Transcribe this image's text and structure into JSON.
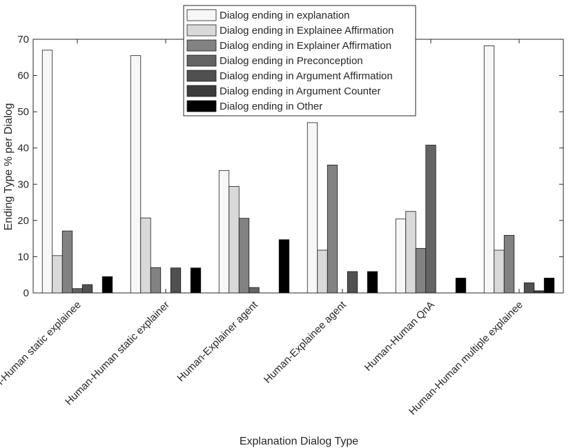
{
  "chart_data": {
    "type": "bar",
    "title": "",
    "xlabel": "Explanation Dialog Type",
    "ylabel": "Ending Type % per Dialog",
    "ylim": [
      0,
      70
    ],
    "yticks": [
      0,
      10,
      20,
      30,
      40,
      50,
      60,
      70
    ],
    "grid": false,
    "legend_position": "top-center",
    "categories": [
      "Human-Human static explainee",
      "Human-Human static explainer",
      "Human-Explainer agent",
      "Human-Explainee agent",
      "Human-Human QnA",
      "Human-Human multiple explainee"
    ],
    "series": [
      {
        "name": "Dialog ending in explanation",
        "color": "#f7f7f7",
        "values": [
          67.0,
          65.5,
          33.8,
          47.0,
          20.4,
          68.2
        ]
      },
      {
        "name": "Dialog ending in Explainee Affirmation",
        "color": "#d9d9d9",
        "values": [
          10.3,
          20.7,
          29.4,
          11.8,
          22.5,
          11.8
        ]
      },
      {
        "name": "Dialog ending in Explainer Affirmation",
        "color": "#828282",
        "values": [
          17.1,
          7.0,
          20.6,
          35.3,
          12.3,
          15.9
        ]
      },
      {
        "name": "Dialog ending in Preconception",
        "color": "#646464",
        "values": [
          1.2,
          0.0,
          1.5,
          0.0,
          40.8,
          0.0
        ]
      },
      {
        "name": "Dialog ending in Argument Affirmation",
        "color": "#505050",
        "values": [
          2.3,
          6.9,
          0.0,
          5.9,
          0.0,
          2.8
        ]
      },
      {
        "name": "Dialog ending in Argument Counter",
        "color": "#3c3c3c",
        "values": [
          0.0,
          0.0,
          0.0,
          0.0,
          0.0,
          0.6
        ]
      },
      {
        "name": "Dialog ending in Other",
        "color": "#000000",
        "values": [
          4.5,
          6.9,
          14.7,
          5.9,
          4.1,
          4.1
        ]
      }
    ]
  }
}
